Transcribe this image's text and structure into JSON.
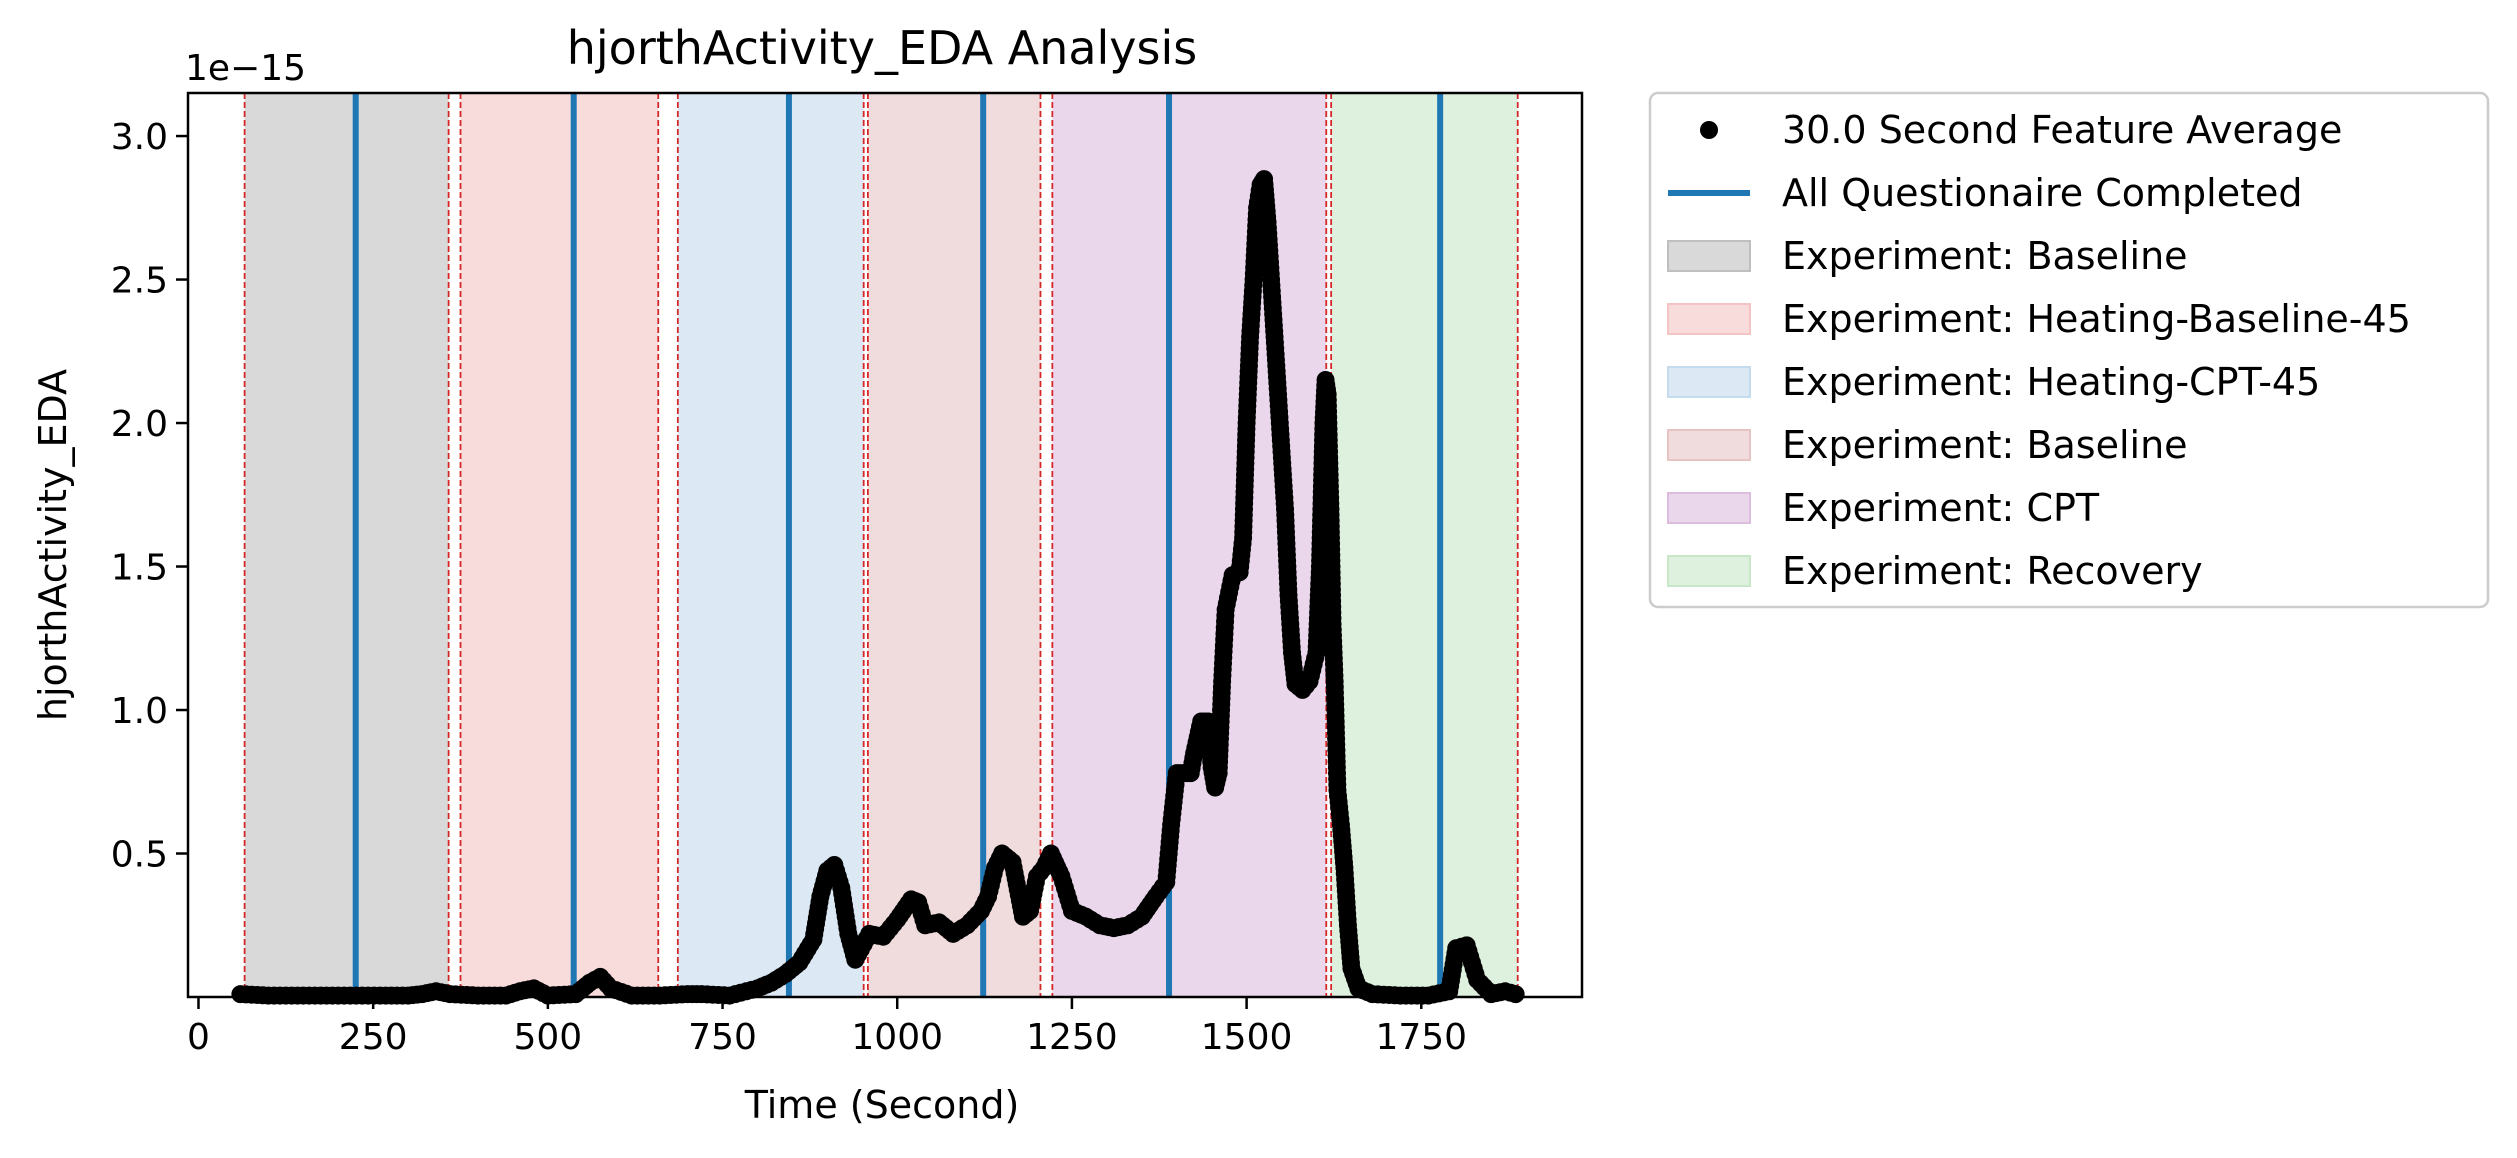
{
  "chart_data": {
    "type": "scatter",
    "title": "hjorthActivity_EDA Analysis",
    "xlabel": "Time (Second)",
    "ylabel": "hjorthActivity_EDA",
    "y_offset_label": "1e−15",
    "xlim": [
      -15,
      1980
    ],
    "ylim": [
      0.0,
      3.15
    ],
    "x_ticks": [
      0,
      250,
      500,
      750,
      1000,
      1250,
      1500,
      1750
    ],
    "x_tick_labels": [
      "0",
      "250",
      "500",
      "750",
      "1000",
      "1250",
      "1500",
      "1750"
    ],
    "y_ticks": [
      0.5,
      1.0,
      1.5,
      2.0,
      2.5,
      3.0
    ],
    "y_tick_labels": [
      "0.5",
      "1.0",
      "1.5",
      "2.0",
      "2.5",
      "3.0"
    ],
    "grid": false,
    "legend_placement": "outside-top-right",
    "regions": [
      {
        "label": "Experiment: Baseline",
        "start": 66,
        "end": 358,
        "color": "#bfbfbf"
      },
      {
        "label": "Experiment: Heating-Baseline-45",
        "start": 375,
        "end": 658,
        "color": "#f4c3c3"
      },
      {
        "label": "Experiment: Heating-CPT-45",
        "start": 686,
        "end": 952,
        "color": "#c5dbee"
      },
      {
        "label": "Experiment: Baseline",
        "start": 958,
        "end": 1205,
        "color": "#e6c4c4"
      },
      {
        "label": "Experiment: CPT",
        "start": 1222,
        "end": 1614,
        "color": "#dcbde0"
      },
      {
        "label": "Experiment: Recovery",
        "start": 1621,
        "end": 1888,
        "color": "#c8e6c8"
      }
    ],
    "boundary_lines": [
      66,
      358,
      375,
      658,
      686,
      952,
      958,
      1205,
      1222,
      1614,
      1621,
      1888
    ],
    "questionnaire_lines": [
      225,
      537,
      845,
      1123,
      1389,
      1777
    ],
    "series": [
      {
        "name": "30.0 Second Feature Average",
        "color": "#000000",
        "points": [
          [
            60,
            0.01
          ],
          [
            100,
            0.005
          ],
          [
            150,
            0.005
          ],
          [
            200,
            0.005
          ],
          [
            260,
            0.005
          ],
          [
            300,
            0.005
          ],
          [
            320,
            0.01
          ],
          [
            340,
            0.02
          ],
          [
            360,
            0.01
          ],
          [
            400,
            0.005
          ],
          [
            440,
            0.005
          ],
          [
            460,
            0.02
          ],
          [
            480,
            0.03
          ],
          [
            500,
            0.005
          ],
          [
            540,
            0.01
          ],
          [
            560,
            0.05
          ],
          [
            575,
            0.07
          ],
          [
            590,
            0.03
          ],
          [
            620,
            0.005
          ],
          [
            660,
            0.005
          ],
          [
            700,
            0.01
          ],
          [
            720,
            0.01
          ],
          [
            760,
            0.005
          ],
          [
            800,
            0.03
          ],
          [
            820,
            0.05
          ],
          [
            840,
            0.08
          ],
          [
            860,
            0.12
          ],
          [
            880,
            0.2
          ],
          [
            890,
            0.35
          ],
          [
            900,
            0.44
          ],
          [
            910,
            0.46
          ],
          [
            920,
            0.38
          ],
          [
            930,
            0.22
          ],
          [
            940,
            0.13
          ],
          [
            960,
            0.22
          ],
          [
            980,
            0.21
          ],
          [
            1000,
            0.27
          ],
          [
            1020,
            0.34
          ],
          [
            1030,
            0.33
          ],
          [
            1040,
            0.25
          ],
          [
            1060,
            0.26
          ],
          [
            1080,
            0.22
          ],
          [
            1100,
            0.25
          ],
          [
            1120,
            0.3
          ],
          [
            1130,
            0.35
          ],
          [
            1140,
            0.45
          ],
          [
            1150,
            0.5
          ],
          [
            1165,
            0.47
          ],
          [
            1180,
            0.28
          ],
          [
            1190,
            0.3
          ],
          [
            1200,
            0.42
          ],
          [
            1210,
            0.45
          ],
          [
            1220,
            0.5
          ],
          [
            1235,
            0.42
          ],
          [
            1250,
            0.3
          ],
          [
            1270,
            0.28
          ],
          [
            1290,
            0.25
          ],
          [
            1310,
            0.24
          ],
          [
            1330,
            0.25
          ],
          [
            1350,
            0.28
          ],
          [
            1370,
            0.35
          ],
          [
            1385,
            0.4
          ],
          [
            1392,
            0.6
          ],
          [
            1400,
            0.78
          ],
          [
            1410,
            0.78
          ],
          [
            1420,
            0.78
          ],
          [
            1425,
            0.85
          ],
          [
            1435,
            0.96
          ],
          [
            1445,
            0.96
          ],
          [
            1450,
            0.8
          ],
          [
            1455,
            0.73
          ],
          [
            1460,
            0.78
          ],
          [
            1465,
            1.1
          ],
          [
            1470,
            1.35
          ],
          [
            1480,
            1.47
          ],
          [
            1490,
            1.48
          ],
          [
            1495,
            1.6
          ],
          [
            1500,
            2.0
          ],
          [
            1505,
            2.3
          ],
          [
            1510,
            2.5
          ],
          [
            1515,
            2.75
          ],
          [
            1520,
            2.83
          ],
          [
            1525,
            2.85
          ],
          [
            1530,
            2.7
          ],
          [
            1535,
            2.5
          ],
          [
            1540,
            2.3
          ],
          [
            1545,
            2.1
          ],
          [
            1550,
            1.9
          ],
          [
            1555,
            1.7
          ],
          [
            1560,
            1.4
          ],
          [
            1565,
            1.2
          ],
          [
            1570,
            1.09
          ],
          [
            1580,
            1.07
          ],
          [
            1590,
            1.1
          ],
          [
            1600,
            1.2
          ],
          [
            1605,
            1.5
          ],
          [
            1608,
            1.8
          ],
          [
            1610,
            2.0
          ],
          [
            1613,
            2.15
          ],
          [
            1616,
            2.1
          ],
          [
            1620,
            1.7
          ],
          [
            1623,
            1.3
          ],
          [
            1626,
            1.1
          ],
          [
            1630,
            0.72
          ],
          [
            1635,
            0.6
          ],
          [
            1640,
            0.45
          ],
          [
            1645,
            0.25
          ],
          [
            1650,
            0.1
          ],
          [
            1660,
            0.03
          ],
          [
            1680,
            0.01
          ],
          [
            1720,
            0.005
          ],
          [
            1760,
            0.005
          ],
          [
            1790,
            0.02
          ],
          [
            1800,
            0.17
          ],
          [
            1815,
            0.18
          ],
          [
            1830,
            0.06
          ],
          [
            1850,
            0.01
          ],
          [
            1870,
            0.02
          ],
          [
            1885,
            0.01
          ]
        ]
      }
    ],
    "legend": [
      {
        "kind": "marker",
        "label": "30.0 Second Feature Average",
        "color": "#000000"
      },
      {
        "kind": "line",
        "label": "All Questionaire Completed",
        "color": "#1f77b4"
      },
      {
        "kind": "patch",
        "label": "Experiment: Baseline",
        "color": "#bfbfbf"
      },
      {
        "kind": "patch",
        "label": "Experiment: Heating-Baseline-45",
        "color": "#f4c3c3"
      },
      {
        "kind": "patch",
        "label": "Experiment: Heating-CPT-45",
        "color": "#c5dbee"
      },
      {
        "kind": "patch",
        "label": "Experiment: Baseline",
        "color": "#e6c4c4"
      },
      {
        "kind": "patch",
        "label": "Experiment: CPT",
        "color": "#dcbde0"
      },
      {
        "kind": "patch",
        "label": "Experiment: Recovery",
        "color": "#c8e6c8"
      }
    ],
    "colors": {
      "questionnaire_line": "#1f77b4",
      "boundary_line": "#d62728",
      "points": "#000000"
    }
  }
}
